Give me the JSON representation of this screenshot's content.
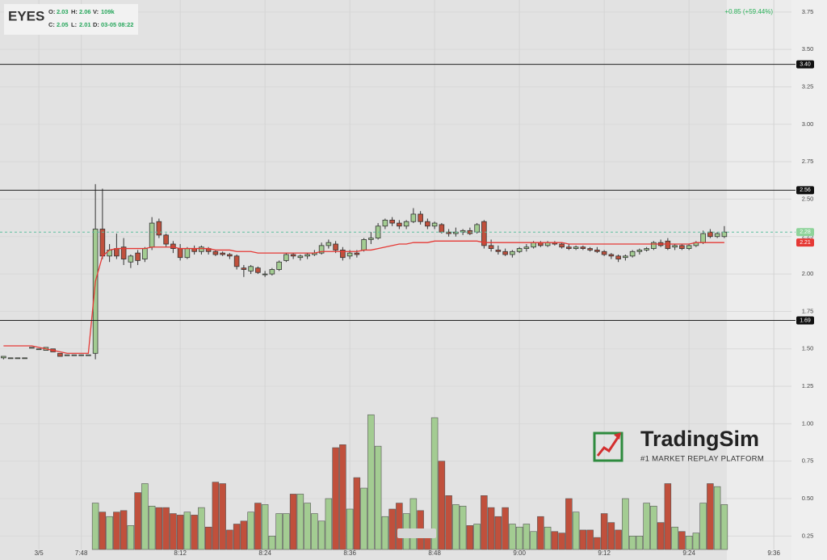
{
  "chart_data": {
    "type": "candlestick",
    "title": "EYES",
    "legend": [
      {
        "key": "O:",
        "value": 2.03
      },
      {
        "key": "H:",
        "value": 2.06
      },
      {
        "key": "V:",
        "value": "109k"
      },
      {
        "key": "C:",
        "value": 2.05
      },
      {
        "key": "L:",
        "value": 2.01
      },
      {
        "key": "D:",
        "value": "03-05 08:22"
      }
    ],
    "change": "+0.85 (+59.44%)",
    "categories": [
      null,
      null,
      null,
      null,
      null,
      "3/5",
      null,
      null,
      null,
      null,
      null,
      "7:48",
      null,
      null,
      null,
      null,
      null,
      null,
      null,
      null,
      null,
      null,
      null,
      null,
      null,
      "8:12",
      null,
      null,
      null,
      null,
      null,
      null,
      null,
      null,
      null,
      null,
      null,
      "8:24",
      null,
      null,
      null,
      null,
      null,
      null,
      null,
      null,
      null,
      null,
      null,
      "8:36",
      null,
      null,
      null,
      null,
      null,
      null,
      null,
      null,
      null,
      null,
      null,
      "8:48",
      null,
      null,
      null,
      null,
      null,
      null,
      null,
      null,
      null,
      null,
      null,
      "9:00",
      null,
      null,
      null,
      null,
      null,
      null,
      null,
      null,
      null,
      null,
      null,
      "9:12",
      null,
      null,
      null,
      null,
      null,
      null,
      null,
      null,
      null,
      null,
      null,
      "9:24",
      null,
      null,
      null,
      null,
      null,
      null,
      null,
      null,
      null,
      null,
      null,
      "9:36"
    ],
    "open": [
      1.44,
      1.44,
      1.44,
      1.44,
      1.51,
      1.5,
      1.49,
      1.5,
      1.47,
      1.46,
      1.46,
      1.46,
      1.46,
      1.47,
      2.3,
      2.12,
      2.17,
      2.18,
      2.08,
      2.14,
      2.1,
      2.18,
      2.35,
      2.26,
      2.2,
      2.17,
      2.11,
      2.17,
      2.15,
      2.17,
      2.15,
      2.14,
      2.13,
      2.12,
      2.04,
      2.02,
      2.04,
      2.0,
      2.0,
      2.03,
      2.09,
      2.13,
      2.11,
      2.12,
      2.13,
      2.14,
      2.19,
      2.2,
      2.16,
      2.12,
      2.14,
      2.16,
      2.23,
      2.24,
      2.32,
      2.36,
      2.34,
      2.32,
      2.35,
      2.4,
      2.35,
      2.32,
      2.33,
      2.28,
      2.27,
      2.28,
      2.29,
      2.28,
      2.35,
      2.19,
      2.16,
      2.15,
      2.13,
      2.15,
      2.17,
      2.18,
      2.21,
      2.19,
      2.21,
      2.2,
      2.18,
      2.17,
      2.18,
      2.17,
      2.16,
      2.15,
      2.13,
      2.12,
      2.11,
      2.12,
      2.15,
      2.16,
      2.17,
      2.21,
      2.22,
      2.18,
      2.19,
      2.17,
      2.19,
      2.21,
      2.28,
      2.25,
      2.25,
      null,
      null,
      null,
      null,
      null,
      null,
      null
    ],
    "high": [
      1.45,
      1.44,
      1.44,
      1.44,
      1.51,
      1.5,
      1.51,
      1.5,
      1.47,
      1.46,
      1.46,
      1.46,
      1.46,
      2.6,
      2.57,
      2.2,
      2.27,
      2.24,
      2.13,
      2.16,
      2.18,
      2.38,
      2.37,
      2.27,
      2.22,
      2.2,
      2.18,
      2.19,
      2.19,
      2.18,
      2.16,
      2.15,
      2.14,
      2.13,
      2.06,
      2.06,
      2.05,
      2.02,
      2.04,
      2.09,
      2.14,
      2.14,
      2.13,
      2.14,
      2.16,
      2.21,
      2.23,
      2.22,
      2.18,
      2.16,
      2.16,
      2.24,
      2.28,
      2.34,
      2.37,
      2.38,
      2.36,
      2.36,
      2.44,
      2.42,
      2.37,
      2.35,
      2.34,
      2.3,
      2.31,
      2.3,
      2.31,
      2.34,
      2.36,
      2.23,
      2.19,
      2.17,
      2.16,
      2.18,
      2.2,
      2.22,
      2.22,
      2.22,
      2.22,
      2.21,
      2.2,
      2.19,
      2.19,
      2.18,
      2.18,
      2.16,
      2.14,
      2.13,
      2.13,
      2.16,
      2.17,
      2.18,
      2.22,
      2.23,
      2.24,
      2.2,
      2.2,
      2.2,
      2.22,
      2.29,
      2.3,
      2.28,
      2.32,
      null,
      null,
      null,
      null,
      null,
      null,
      null
    ],
    "low": [
      1.43,
      1.44,
      1.44,
      1.44,
      1.51,
      1.5,
      1.49,
      1.48,
      1.45,
      1.46,
      1.46,
      1.46,
      1.46,
      1.43,
      2.1,
      2.08,
      2.1,
      2.06,
      2.04,
      2.06,
      2.08,
      2.16,
      2.24,
      2.18,
      2.14,
      2.09,
      2.1,
      2.13,
      2.13,
      2.13,
      2.12,
      2.12,
      2.1,
      2.03,
      1.98,
      2.0,
      2.0,
      1.98,
      1.99,
      2.02,
      2.08,
      2.1,
      2.09,
      2.1,
      2.12,
      2.13,
      2.17,
      2.14,
      2.09,
      2.1,
      2.11,
      2.15,
      2.2,
      2.23,
      2.3,
      2.32,
      2.3,
      2.3,
      2.34,
      2.33,
      2.3,
      2.3,
      2.27,
      2.25,
      2.25,
      2.26,
      2.26,
      2.27,
      2.17,
      2.15,
      2.13,
      2.12,
      2.11,
      2.14,
      2.15,
      2.17,
      2.18,
      2.18,
      2.19,
      2.17,
      2.16,
      2.16,
      2.16,
      2.15,
      2.14,
      2.12,
      2.1,
      2.08,
      2.09,
      2.11,
      2.13,
      2.15,
      2.16,
      2.18,
      2.16,
      2.16,
      2.16,
      2.16,
      2.18,
      2.2,
      2.24,
      2.24,
      2.24,
      null,
      null,
      null,
      null,
      null,
      null,
      null
    ],
    "close": [
      1.45,
      1.44,
      1.44,
      1.44,
      1.51,
      1.5,
      1.51,
      1.48,
      1.45,
      1.46,
      1.46,
      1.46,
      1.46,
      2.3,
      2.12,
      2.16,
      2.12,
      2.1,
      2.12,
      2.09,
      2.17,
      2.34,
      2.26,
      2.2,
      2.17,
      2.11,
      2.17,
      2.15,
      2.18,
      2.15,
      2.13,
      2.13,
      2.12,
      2.05,
      2.03,
      2.05,
      2.01,
      2.0,
      2.03,
      2.08,
      2.13,
      2.12,
      2.12,
      2.13,
      2.14,
      2.19,
      2.21,
      2.16,
      2.11,
      2.14,
      2.13,
      2.23,
      2.24,
      2.32,
      2.36,
      2.34,
      2.32,
      2.35,
      2.4,
      2.35,
      2.32,
      2.34,
      2.28,
      2.27,
      2.28,
      2.29,
      2.27,
      2.33,
      2.19,
      2.17,
      2.15,
      2.13,
      2.15,
      2.17,
      2.18,
      2.21,
      2.19,
      2.21,
      2.2,
      2.18,
      2.17,
      2.18,
      2.17,
      2.16,
      2.15,
      2.13,
      2.12,
      2.1,
      2.12,
      2.15,
      2.16,
      2.17,
      2.21,
      2.19,
      2.17,
      2.19,
      2.17,
      2.19,
      2.21,
      2.27,
      2.25,
      2.27,
      2.28,
      null,
      null,
      null,
      null,
      null,
      null,
      null
    ],
    "volume": [
      null,
      null,
      null,
      null,
      null,
      null,
      null,
      null,
      null,
      null,
      null,
      null,
      null,
      0.47,
      0.41,
      0.38,
      0.41,
      0.42,
      0.32,
      0.54,
      0.6,
      0.45,
      0.44,
      0.44,
      0.4,
      0.39,
      0.41,
      0.39,
      0.44,
      0.31,
      0.61,
      0.6,
      0.29,
      0.33,
      0.35,
      0.41,
      0.47,
      0.46,
      0.25,
      0.4,
      0.4,
      0.53,
      0.53,
      0.47,
      0.4,
      0.35,
      0.5,
      0.84,
      0.86,
      0.43,
      0.64,
      0.57,
      1.06,
      0.85,
      0.38,
      0.43,
      0.47,
      0.4,
      0.5,
      0.42,
      0.28,
      1.04,
      0.75,
      0.52,
      0.46,
      0.45,
      0.32,
      0.33,
      0.52,
      0.44,
      0.38,
      0.44,
      0.33,
      0.31,
      0.33,
      0.28,
      0.38,
      0.31,
      0.28,
      0.27,
      0.5,
      0.41,
      0.29,
      0.29,
      0.24,
      0.4,
      0.34,
      0.29,
      0.5,
      0.25,
      0.25,
      0.47,
      0.45,
      0.34,
      0.6,
      0.31,
      0.28,
      0.25,
      0.27,
      0.47,
      0.6,
      0.58,
      0.46,
      null,
      null,
      null,
      null,
      null,
      null,
      null
    ],
    "ma": {
      "color": "#e53935",
      "values": [
        1.52,
        1.52,
        1.52,
        1.52,
        1.52,
        1.51,
        1.5,
        1.49,
        1.48,
        1.47,
        1.47,
        1.47,
        1.47,
        1.95,
        2.12,
        2.16,
        2.17,
        2.17,
        2.17,
        2.17,
        2.17,
        2.18,
        2.18,
        2.18,
        2.18,
        2.17,
        2.17,
        2.17,
        2.17,
        2.17,
        2.16,
        2.16,
        2.16,
        2.15,
        2.15,
        2.15,
        2.14,
        2.14,
        2.14,
        2.14,
        2.14,
        2.14,
        2.14,
        2.14,
        2.14,
        2.15,
        2.15,
        2.15,
        2.15,
        2.15,
        2.15,
        2.16,
        2.16,
        2.17,
        2.18,
        2.19,
        2.2,
        2.2,
        2.21,
        2.21,
        2.21,
        2.22,
        2.22,
        2.22,
        2.22,
        2.22,
        2.22,
        2.22,
        2.21,
        2.21,
        2.21,
        2.21,
        2.21,
        2.21,
        2.21,
        2.21,
        2.21,
        2.21,
        2.21,
        2.21,
        2.2,
        2.2,
        2.2,
        2.2,
        2.2,
        2.2,
        2.2,
        2.2,
        2.2,
        2.2,
        2.2,
        2.2,
        2.2,
        2.2,
        2.2,
        2.2,
        2.2,
        2.2,
        2.21,
        2.21,
        2.21,
        2.21,
        2.21,
        null,
        null,
        null,
        null,
        null,
        null,
        null
      ]
    },
    "up_color": "#a3cc92",
    "down_color": "#c0503c",
    "ylim": [
      0.16,
      3.83
    ],
    "yticks": [
      3.75,
      {
        "value": 3.5,
        "label": "3.50"
      },
      3.25,
      {
        "value": 3,
        "label": "3.00"
      },
      2.75,
      {
        "value": 2.5,
        "label": "2.50"
      },
      2.25,
      {
        "value": 2,
        "label": "2.00"
      },
      1.75,
      {
        "value": 1.5,
        "label": "1.50"
      },
      1.25,
      {
        "value": 1,
        "label": "1.00"
      },
      0.75,
      {
        "value": 0.5,
        "label": "0.50"
      },
      0.25
    ],
    "hlines": [
      {
        "value": 3.4,
        "label": "3.40"
      },
      {
        "value": 2.56,
        "label": "2.56"
      },
      {
        "value": 1.69,
        "label": "1.69"
      }
    ],
    "last_price": {
      "value": 2.28,
      "label": "2.28"
    },
    "ma_last": {
      "value": 2.21,
      "label": "2.21"
    },
    "watermark": {
      "title": "TradingSim",
      "subtitle": "#1 MARKET REPLAY PLATFORM"
    }
  }
}
